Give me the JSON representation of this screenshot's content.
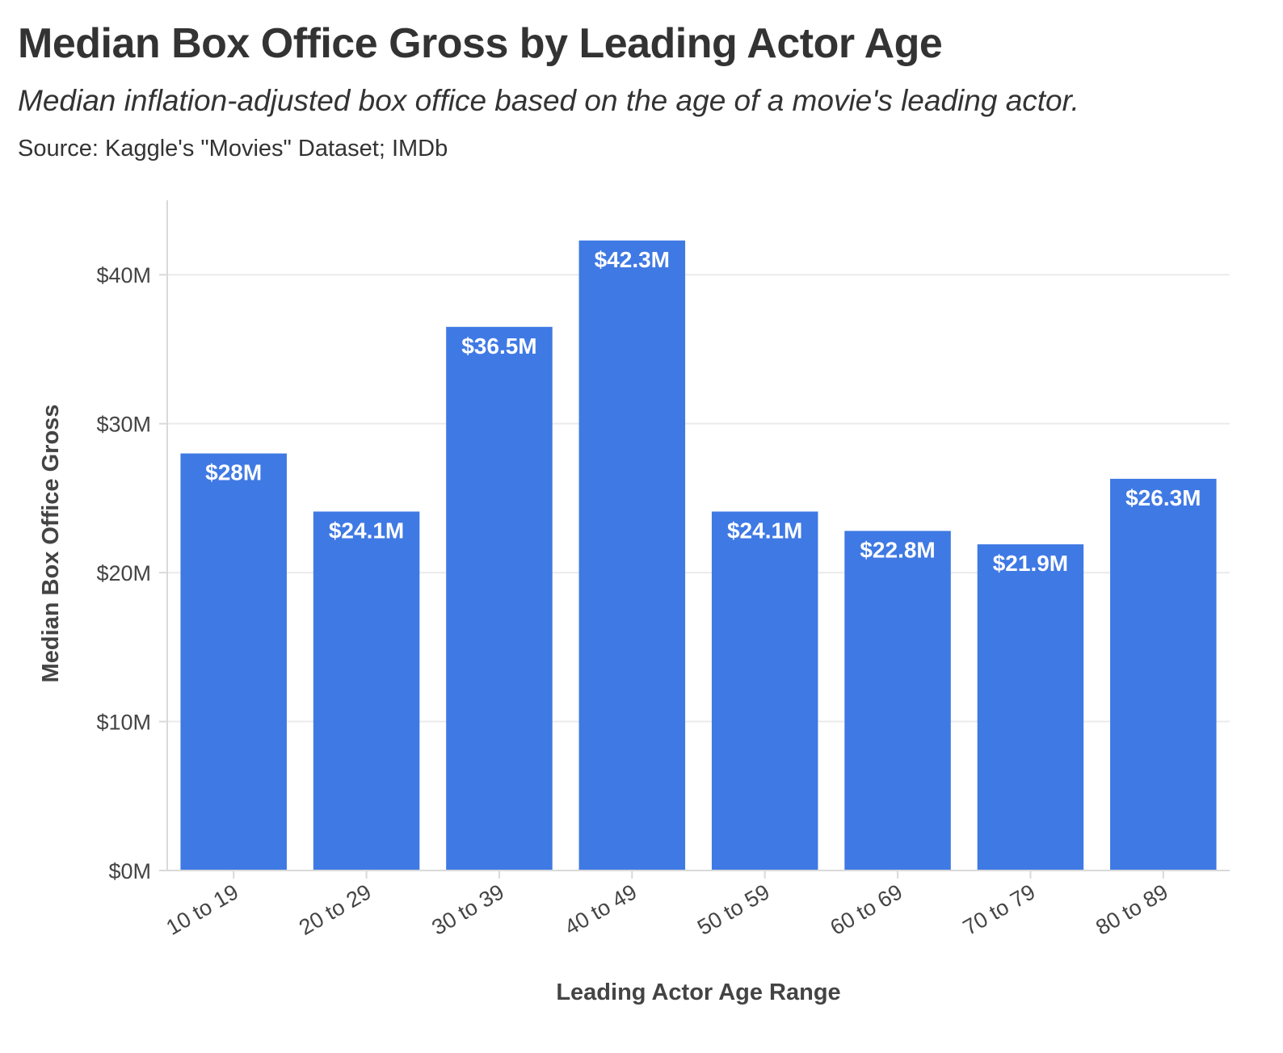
{
  "title": "Median Box Office Gross by Leading Actor Age",
  "subtitle": "Median inflation-adjusted box office based on the age of a movie's leading actor.",
  "caption": "Source: Kaggle's \"Movies\" Dataset; IMDb",
  "colors": {
    "bar": "#3f79e4",
    "grid": "#ebebeb",
    "axis": "#d9d9d9",
    "text": "#333333"
  },
  "chart_data": {
    "type": "bar",
    "categories": [
      "10 to 19",
      "20 to 29",
      "30 to 39",
      "40 to 49",
      "50 to 59",
      "60 to 69",
      "70 to 79",
      "80 to 89"
    ],
    "values": [
      28.0,
      24.1,
      36.5,
      42.3,
      24.1,
      22.8,
      21.9,
      26.3
    ],
    "value_labels": [
      "$28M",
      "$24.1M",
      "$36.5M",
      "$42.3M",
      "$24.1M",
      "$22.8M",
      "$21.9M",
      "$26.3M"
    ],
    "unit": "millions of dollars",
    "xlabel": "Leading Actor Age Range",
    "ylabel": "Median Box Office Gross",
    "ylim": [
      0,
      45
    ],
    "yticks": [
      0,
      10,
      20,
      30,
      40
    ],
    "ytick_labels": [
      "$0M",
      "$10M",
      "$20M",
      "$30M",
      "$40M"
    ],
    "grid": true,
    "legend": "none",
    "x_tick_rotation": "angled"
  }
}
